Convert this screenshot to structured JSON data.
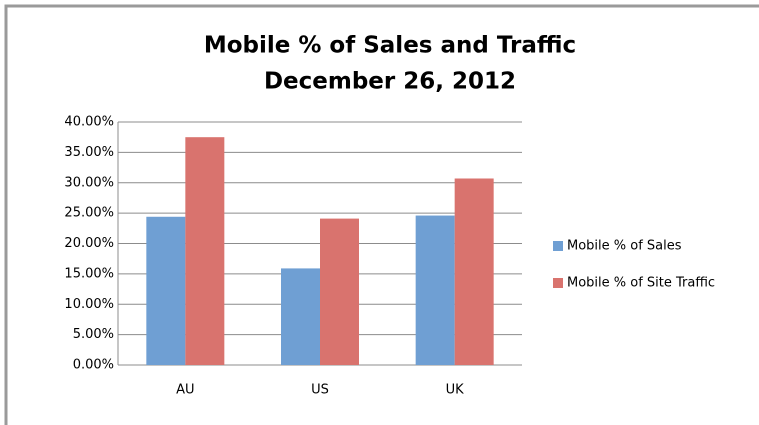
{
  "chart_data": {
    "type": "bar",
    "title": "Mobile % of Sales and Traffic",
    "subtitle": "December 26, 2012",
    "categories": [
      "AU",
      "US",
      "UK"
    ],
    "series": [
      {
        "name": "Mobile % of Sales",
        "color": "#6f9fd3",
        "values": [
          24.4,
          15.9,
          24.6
        ]
      },
      {
        "name": "Mobile % of Site Traffic",
        "color": "#d9736e",
        "values": [
          37.5,
          24.1,
          30.7
        ]
      }
    ],
    "ylim": [
      0,
      40
    ],
    "yticks": [
      {
        "value": 0,
        "label": "0.00%"
      },
      {
        "value": 5,
        "label": "5.00%"
      },
      {
        "value": 10,
        "label": "10.00%"
      },
      {
        "value": 15,
        "label": "15.00%"
      },
      {
        "value": 20,
        "label": "20.00%"
      },
      {
        "value": 25,
        "label": "25.00%"
      },
      {
        "value": 30,
        "label": "30.00%"
      },
      {
        "value": 35,
        "label": "35.00%"
      },
      {
        "value": 40,
        "label": "40.00%"
      }
    ],
    "grid": true,
    "legend": "right"
  }
}
